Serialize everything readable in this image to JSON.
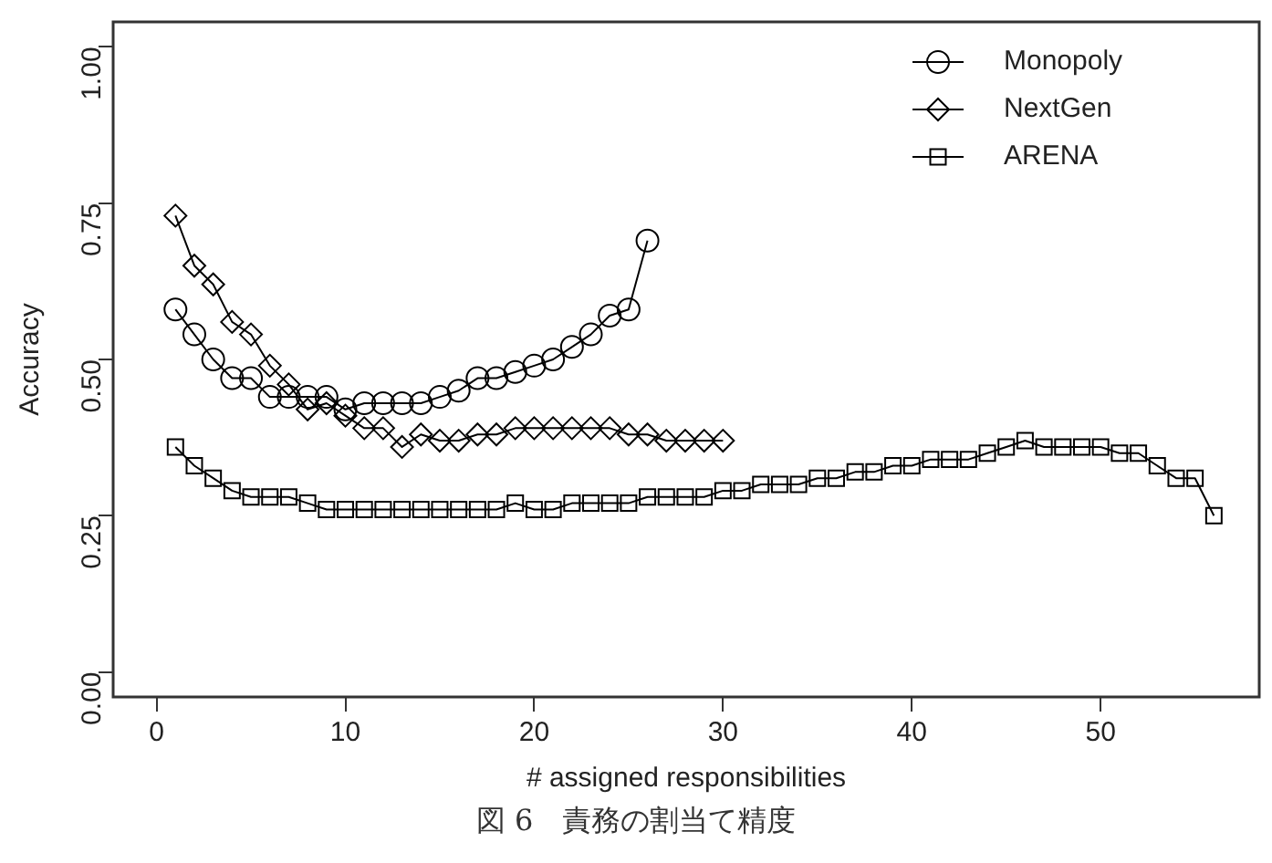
{
  "chart_data": {
    "type": "line",
    "xlabel": "# assigned responsibilities",
    "ylabel": "Accuracy",
    "xlim": [
      -2.3,
      58.4
    ],
    "xticks": [
      0,
      10,
      20,
      30,
      40,
      50
    ],
    "ylim": [
      -0.04,
      1.04
    ],
    "yticks": [
      {
        "value": 0,
        "label": "0.00"
      },
      {
        "value": 0.25,
        "label": "0.25"
      },
      {
        "value": 0.5,
        "label": "0.50"
      },
      {
        "value": 0.75,
        "label": "0.75"
      },
      {
        "value": 1,
        "label": "1.00"
      }
    ],
    "grid": false,
    "legend": "top right",
    "line_style": "solid",
    "annotations": [
      "図 6　責務の割当て精度"
    ],
    "series": [
      {
        "name": "Monopoly",
        "color": "#000000",
        "marker": "circle",
        "x": [
          1,
          2,
          3,
          4,
          5,
          6,
          7,
          8,
          9,
          10,
          11,
          12,
          13,
          14,
          15,
          16,
          17,
          18,
          19,
          20,
          21,
          22,
          23,
          24,
          25,
          26
        ],
        "values": [
          0.58,
          0.54,
          0.5,
          0.47,
          0.47,
          0.44,
          0.44,
          0.44,
          0.44,
          0.42,
          0.43,
          0.43,
          0.43,
          0.43,
          0.44,
          0.45,
          0.47,
          0.47,
          0.48,
          0.49,
          0.5,
          0.52,
          0.54,
          0.57,
          0.58,
          0.69
        ]
      },
      {
        "name": "NextGen",
        "color": "#000000",
        "marker": "diamond",
        "x": [
          1,
          2,
          3,
          4,
          5,
          6,
          7,
          8,
          9,
          10,
          11,
          12,
          13,
          14,
          15,
          16,
          17,
          18,
          19,
          20,
          21,
          22,
          23,
          24,
          25,
          26,
          27,
          28,
          29,
          30
        ],
        "values": [
          0.73,
          0.65,
          0.62,
          0.56,
          0.54,
          0.49,
          0.46,
          0.42,
          0.43,
          0.41,
          0.39,
          0.39,
          0.36,
          0.38,
          0.37,
          0.37,
          0.38,
          0.38,
          0.39,
          0.39,
          0.39,
          0.39,
          0.39,
          0.39,
          0.38,
          0.38,
          0.37,
          0.37,
          0.37,
          0.37
        ]
      },
      {
        "name": "ARENA",
        "color": "#000000",
        "marker": "square",
        "x": [
          1,
          2,
          3,
          4,
          5,
          6,
          7,
          8,
          9,
          10,
          11,
          12,
          13,
          14,
          15,
          16,
          17,
          18,
          19,
          20,
          21,
          22,
          23,
          24,
          25,
          26,
          27,
          28,
          29,
          30,
          31,
          32,
          33,
          34,
          35,
          36,
          37,
          38,
          39,
          40,
          41,
          42,
          43,
          44,
          45,
          46,
          47,
          48,
          49,
          50,
          51,
          52,
          53,
          54,
          55,
          56
        ],
        "values": [
          0.36,
          0.33,
          0.31,
          0.29,
          0.28,
          0.28,
          0.28,
          0.27,
          0.26,
          0.26,
          0.26,
          0.26,
          0.26,
          0.26,
          0.26,
          0.26,
          0.26,
          0.26,
          0.27,
          0.26,
          0.26,
          0.27,
          0.27,
          0.27,
          0.27,
          0.28,
          0.28,
          0.28,
          0.28,
          0.29,
          0.29,
          0.3,
          0.3,
          0.3,
          0.31,
          0.31,
          0.32,
          0.32,
          0.33,
          0.33,
          0.34,
          0.34,
          0.34,
          0.35,
          0.36,
          0.37,
          0.36,
          0.36,
          0.36,
          0.36,
          0.35,
          0.35,
          0.33,
          0.31,
          0.31,
          0.25
        ]
      }
    ]
  }
}
